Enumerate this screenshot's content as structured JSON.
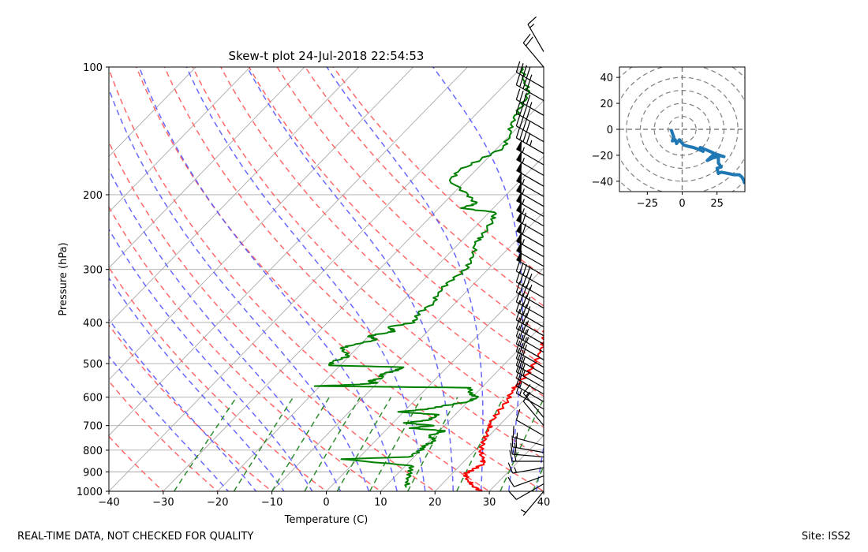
{
  "chart_data": [
    {
      "type": "line",
      "title": "Skew-t plot 24-Jul-2018 22:54:53",
      "xlabel": "Temperature (C)",
      "ylabel": "Pressure (hPa)",
      "xlim": [
        -40,
        40
      ],
      "ylim": [
        1000,
        100
      ],
      "yscale": "log",
      "skew_deg_per_decade": 76,
      "xticks": [
        -40,
        -30,
        -20,
        -10,
        0,
        10,
        20,
        30,
        40
      ],
      "yticks": [
        1000,
        900,
        800,
        700,
        600,
        500,
        400,
        300,
        200,
        100
      ],
      "grid": true,
      "reference_lines": {
        "isotherms_C": [
          -100,
          -90,
          -80,
          -70,
          -60,
          -50,
          -40,
          -30,
          -20,
          -10,
          0,
          10,
          20,
          30,
          40,
          50,
          60
        ],
        "dry_adiabats_theta_C": [
          -30,
          -20,
          -10,
          0,
          10,
          20,
          30,
          40,
          50,
          60,
          70,
          80,
          90,
          100,
          110
        ],
        "moist_adiabats_start_C": [
          -15,
          -10,
          -5,
          0,
          5,
          10,
          15,
          20,
          25,
          30,
          35,
          40
        ],
        "mixing_ratio_lines_start_C": [
          -28,
          -17,
          -10,
          -4,
          2,
          8,
          15,
          24,
          32,
          38
        ],
        "colors": {
          "dry_adiabat": "#ff4d4d",
          "moist_adiabat": "#4d4dff",
          "mixing_ratio": "#2e8b2e",
          "isotherm": "#aaaaaa"
        }
      },
      "series": [
        {
          "color": "#ff0000",
          "points": [
            [
              1000,
              28.5
            ],
            [
              970,
              26
            ],
            [
              940,
              24
            ],
            [
              910,
              22.5
            ],
            [
              890,
              23
            ],
            [
              860,
              24
            ],
            [
              840,
              23
            ],
            [
              800,
              21
            ],
            [
              760,
              20
            ],
            [
              720,
              19
            ],
            [
              690,
              18
            ],
            [
              650,
              17.5
            ],
            [
              610,
              17
            ],
            [
              580,
              16.2
            ],
            [
              560,
              16
            ],
            [
              530,
              16
            ],
            [
              500,
              15.5
            ],
            [
              470,
              14.5
            ],
            [
              440,
              13
            ],
            [
              410,
              11
            ],
            [
              380,
              9
            ],
            [
              350,
              6.5
            ],
            [
              320,
              3.5
            ],
            [
              300,
              1.5
            ],
            [
              280,
              -0.5
            ],
            [
              260,
              -3
            ],
            [
              240,
              -5.5
            ],
            [
              225,
              -7.5
            ],
            [
              210,
              -9
            ],
            [
              200,
              -9.5
            ],
            [
              185,
              -9
            ],
            [
              170,
              -10
            ],
            [
              160,
              -11
            ],
            [
              150,
              -12
            ],
            [
              140,
              -14
            ],
            [
              130,
              -16
            ],
            [
              120,
              -19
            ],
            [
              110,
              -21
            ],
            [
              103,
              -24
            ],
            [
              100,
              -26
            ]
          ]
        },
        {
          "color": "#008000",
          "points": [
            [
              980,
              14
            ],
            [
              940,
              13
            ],
            [
              900,
              12
            ],
            [
              870,
              11
            ],
            [
              840,
              -3
            ],
            [
              830,
              9
            ],
            [
              800,
              10
            ],
            [
              780,
              10
            ],
            [
              760,
              11
            ],
            [
              740,
              9
            ],
            [
              720,
              11
            ],
            [
              710,
              4
            ],
            [
              700,
              8
            ],
            [
              690,
              2
            ],
            [
              680,
              6
            ],
            [
              660,
              7
            ],
            [
              650,
              -1
            ],
            [
              640,
              4
            ],
            [
              630,
              6
            ],
            [
              615,
              10
            ],
            [
              600,
              11
            ],
            [
              590,
              9
            ],
            [
              570,
              8
            ],
            [
              565,
              -21
            ],
            [
              560,
              -13
            ],
            [
              555,
              -10
            ],
            [
              550,
              -12
            ],
            [
              540,
              -10
            ],
            [
              530,
              -11
            ],
            [
              520,
              -9
            ],
            [
              510,
              -8
            ],
            [
              505,
              -22
            ],
            [
              495,
              -22
            ],
            [
              480,
              -20
            ],
            [
              460,
              -23
            ],
            [
              450,
              -21
            ],
            [
              440,
              -18
            ],
            [
              430,
              -20
            ],
            [
              420,
              -16
            ],
            [
              410,
              -18
            ],
            [
              400,
              -14
            ],
            [
              380,
              -15
            ],
            [
              360,
              -14
            ],
            [
              340,
              -15
            ],
            [
              320,
              -15
            ],
            [
              300,
              -14
            ],
            [
              280,
              -15
            ],
            [
              260,
              -17
            ],
            [
              250,
              -17
            ],
            [
              230,
              -18
            ],
            [
              220,
              -19
            ],
            [
              215,
              -26
            ],
            [
              210,
              -24
            ],
            [
              200,
              -27
            ],
            [
              185,
              -33
            ],
            [
              175,
              -33
            ],
            [
              165,
              -31
            ],
            [
              155,
              -29
            ],
            [
              145,
              -30
            ],
            [
              135,
              -32
            ],
            [
              125,
              -33
            ],
            [
              115,
              -34
            ],
            [
              108,
              -37
            ],
            [
              100,
              -40
            ]
          ]
        }
      ],
      "wind_barbs": [
        {
          "p": 1000,
          "spd": 5,
          "dir": 220
        },
        {
          "p": 960,
          "spd": 10,
          "dir": 240
        },
        {
          "p": 920,
          "spd": 10,
          "dir": 250
        },
        {
          "p": 880,
          "spd": 15,
          "dir": 260
        },
        {
          "p": 850,
          "spd": 20,
          "dir": 270
        },
        {
          "p": 830,
          "spd": 20,
          "dir": 275
        },
        {
          "p": 810,
          "spd": 20,
          "dir": 280
        },
        {
          "p": 780,
          "spd": 15,
          "dir": 285
        },
        {
          "p": 740,
          "spd": 10,
          "dir": 300
        },
        {
          "p": 700,
          "spd": 10,
          "dir": 320
        },
        {
          "p": 670,
          "spd": 15,
          "dir": 320
        },
        {
          "p": 640,
          "spd": 15,
          "dir": 300
        },
        {
          "p": 615,
          "spd": 15,
          "dir": 300
        },
        {
          "p": 590,
          "spd": 20,
          "dir": 300
        },
        {
          "p": 570,
          "spd": 25,
          "dir": 300
        },
        {
          "p": 550,
          "spd": 25,
          "dir": 300
        },
        {
          "p": 530,
          "spd": 25,
          "dir": 300
        },
        {
          "p": 510,
          "spd": 30,
          "dir": 300
        },
        {
          "p": 490,
          "spd": 30,
          "dir": 300
        },
        {
          "p": 470,
          "spd": 35,
          "dir": 300
        },
        {
          "p": 450,
          "spd": 35,
          "dir": 300
        },
        {
          "p": 430,
          "spd": 35,
          "dir": 300
        },
        {
          "p": 410,
          "spd": 40,
          "dir": 300
        },
        {
          "p": 390,
          "spd": 40,
          "dir": 300
        },
        {
          "p": 370,
          "spd": 40,
          "dir": 300
        },
        {
          "p": 350,
          "spd": 45,
          "dir": 300
        },
        {
          "p": 330,
          "spd": 45,
          "dir": 300
        },
        {
          "p": 310,
          "spd": 50,
          "dir": 300
        },
        {
          "p": 295,
          "spd": 50,
          "dir": 300
        },
        {
          "p": 280,
          "spd": 55,
          "dir": 300
        },
        {
          "p": 265,
          "spd": 60,
          "dir": 300
        },
        {
          "p": 250,
          "spd": 60,
          "dir": 300
        },
        {
          "p": 237,
          "spd": 55,
          "dir": 300
        },
        {
          "p": 225,
          "spd": 55,
          "dir": 300
        },
        {
          "p": 213,
          "spd": 55,
          "dir": 300
        },
        {
          "p": 202,
          "spd": 55,
          "dir": 300
        },
        {
          "p": 191,
          "spd": 50,
          "dir": 300
        },
        {
          "p": 180,
          "spd": 55,
          "dir": 300
        },
        {
          "p": 170,
          "spd": 55,
          "dir": 300
        },
        {
          "p": 160,
          "spd": 45,
          "dir": 300
        },
        {
          "p": 150,
          "spd": 40,
          "dir": 300
        },
        {
          "p": 140,
          "spd": 40,
          "dir": 300
        },
        {
          "p": 130,
          "spd": 45,
          "dir": 300
        },
        {
          "p": 120,
          "spd": 40,
          "dir": 300
        },
        {
          "p": 112,
          "spd": 45,
          "dir": 300
        },
        {
          "p": 100,
          "spd": 20,
          "dir": 320
        },
        {
          "p": 92,
          "spd": 15,
          "dir": 330
        }
      ]
    },
    {
      "type": "line",
      "xlim": [
        -45,
        45
      ],
      "ylim": [
        -48,
        48
      ],
      "xticks": [
        -25,
        0,
        25
      ],
      "yticks": [
        -40,
        -20,
        0,
        20,
        40
      ],
      "rings": [
        10,
        20,
        30,
        40,
        50,
        60
      ],
      "color": "#1f77b4",
      "points": [
        [
          -8,
          0
        ],
        [
          -7,
          -3
        ],
        [
          -6,
          -6
        ],
        [
          -7,
          -9
        ],
        [
          -5,
          -8
        ],
        [
          -4,
          -11
        ],
        [
          -2,
          -8
        ],
        [
          1,
          -12
        ],
        [
          4,
          -13
        ],
        [
          8,
          -14
        ],
        [
          13,
          -16
        ],
        [
          15,
          -17
        ],
        [
          13,
          -14
        ],
        [
          20,
          -17
        ],
        [
          24,
          -19
        ],
        [
          30,
          -21
        ],
        [
          26,
          -20
        ],
        [
          22,
          -20
        ],
        [
          20,
          -22
        ],
        [
          18,
          -24
        ],
        [
          22,
          -22
        ],
        [
          26,
          -21
        ],
        [
          26,
          -26
        ],
        [
          28,
          -29
        ],
        [
          25,
          -30
        ],
        [
          26,
          -34
        ],
        [
          28,
          -33
        ],
        [
          33,
          -34
        ],
        [
          37,
          -35
        ],
        [
          41,
          -35
        ],
        [
          43,
          -37
        ],
        [
          44,
          -39
        ],
        [
          45,
          -42
        ]
      ]
    }
  ],
  "footer": {
    "left": "REAL-TIME DATA, NOT CHECKED FOR QUALITY",
    "right": "Site: ISS2"
  }
}
